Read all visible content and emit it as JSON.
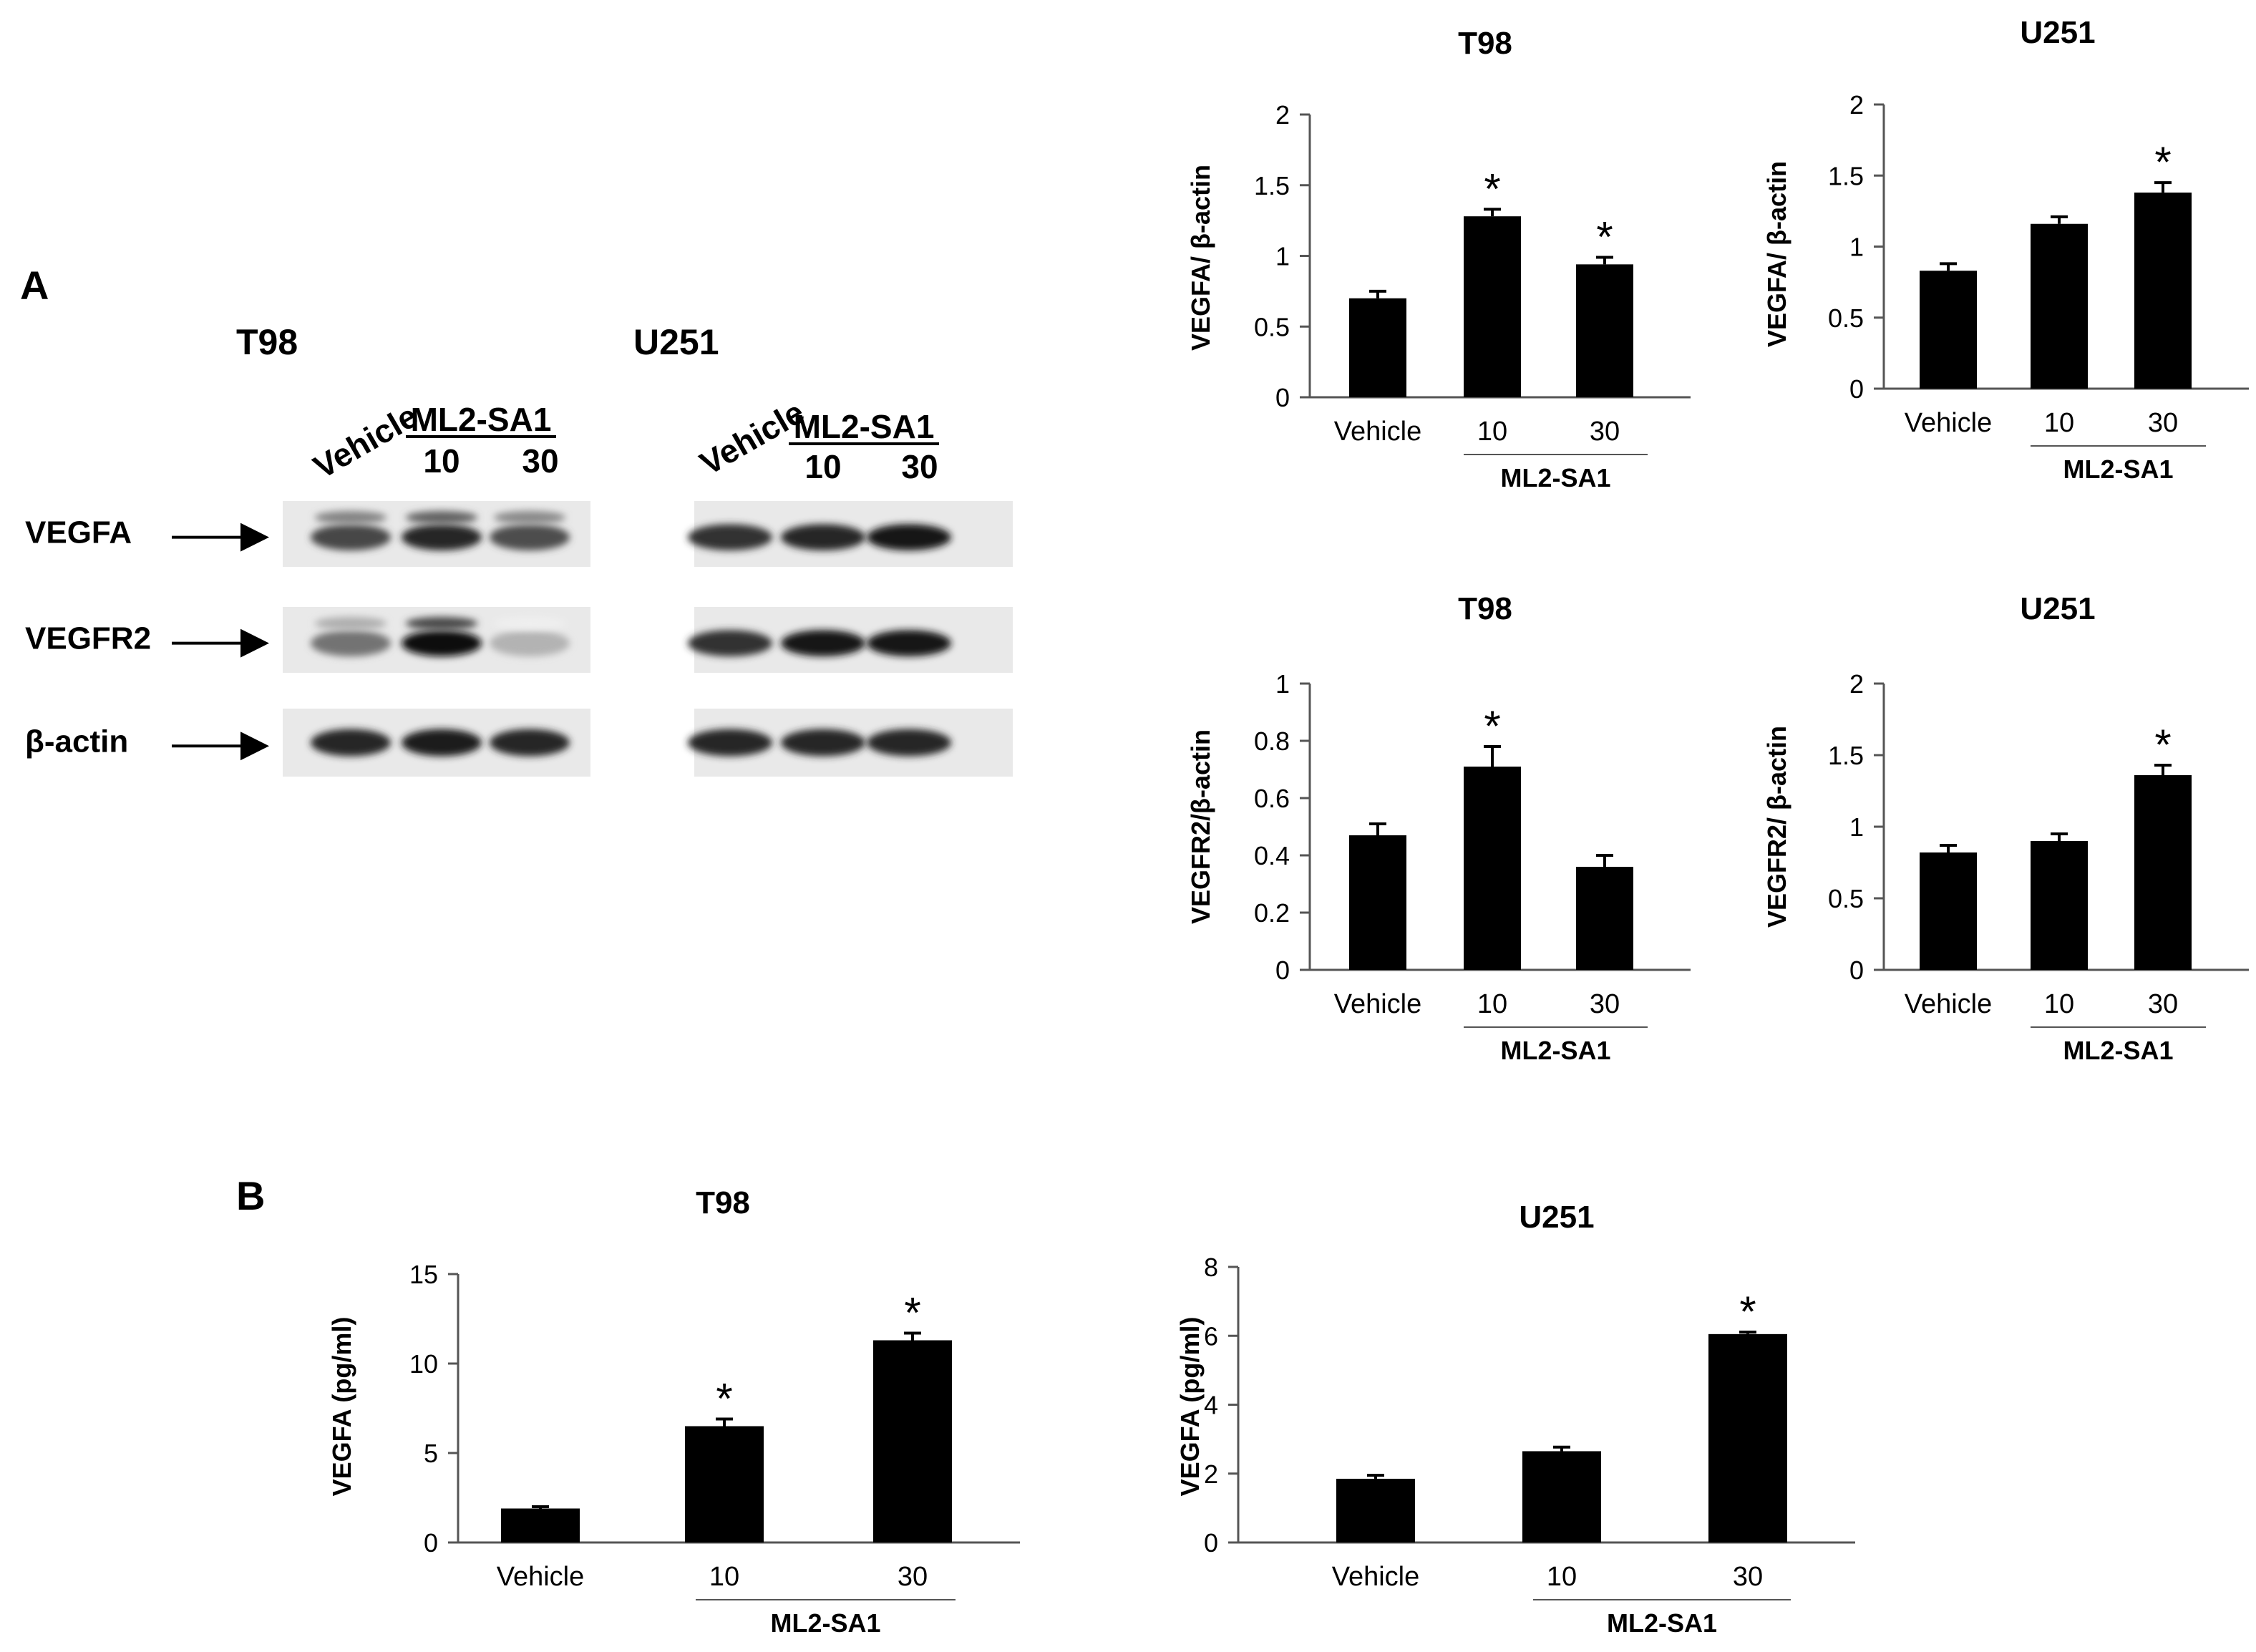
{
  "figure": {
    "panel_a_label": "A",
    "panel_b_label": "B"
  },
  "blots": [
    {
      "title": "T98",
      "lanes": [
        "Vehicle",
        "10",
        "30"
      ],
      "group_label": "ML2-SA1",
      "rows": [
        "VEGFA",
        "VEGFR2",
        "β-actin"
      ],
      "show_arrows": true,
      "band_intensity": [
        [
          0.72,
          0.85,
          0.7
        ],
        [
          0.55,
          0.95,
          0.3
        ],
        [
          0.85,
          0.88,
          0.85
        ]
      ]
    },
    {
      "title": "U251",
      "lanes": [
        "Vehicle",
        "10",
        "30"
      ],
      "group_label": "ML2-SA1",
      "rows": [
        "VEGFA",
        "VEGFR2",
        "β-actin"
      ],
      "show_arrows": false,
      "band_intensity": [
        [
          0.8,
          0.85,
          0.92
        ],
        [
          0.8,
          0.92,
          0.92
        ],
        [
          0.85,
          0.85,
          0.85
        ]
      ]
    }
  ],
  "chart_data": [
    {
      "type": "bar",
      "title": "T98",
      "categories": [
        "Vehicle",
        "10",
        "30"
      ],
      "group_label": "ML2-SA1",
      "ylabel": "VEGFA/ β-actin",
      "ylim": [
        0,
        2
      ],
      "yticks": [
        "0",
        "0.5",
        "1",
        "1.5",
        "2"
      ],
      "values": [
        0.7,
        1.28,
        0.94
      ],
      "errors": [
        0.05,
        0.05,
        0.05
      ],
      "significance": [
        "",
        "*",
        "*"
      ],
      "bar_color": "#000000"
    },
    {
      "type": "bar",
      "title": "U251",
      "categories": [
        "Vehicle",
        "10",
        "30"
      ],
      "group_label": "ML2-SA1",
      "ylabel": "VEGFA/ β-actin",
      "ylim": [
        0,
        2
      ],
      "yticks": [
        "0",
        "0.5",
        "1",
        "1.5",
        "2"
      ],
      "values": [
        0.83,
        1.16,
        1.38
      ],
      "errors": [
        0.05,
        0.05,
        0.07
      ],
      "significance": [
        "",
        "",
        "*"
      ],
      "bar_color": "#000000"
    },
    {
      "type": "bar",
      "title": "T98",
      "categories": [
        "Vehicle",
        "10",
        "30"
      ],
      "group_label": "ML2-SA1",
      "ylabel": "VEGFR2/β-actin",
      "ylim": [
        0,
        1
      ],
      "yticks": [
        "0",
        "0.2",
        "0.4",
        "0.6",
        "0.8",
        "1"
      ],
      "values": [
        0.47,
        0.71,
        0.36
      ],
      "errors": [
        0.04,
        0.07,
        0.04
      ],
      "significance": [
        "",
        "*",
        ""
      ],
      "bar_color": "#000000"
    },
    {
      "type": "bar",
      "title": "U251",
      "categories": [
        "Vehicle",
        "10",
        "30"
      ],
      "group_label": "ML2-SA1",
      "ylabel": "VEGFR2/ β-actin",
      "ylim": [
        0,
        2
      ],
      "yticks": [
        "0",
        "0.5",
        "1",
        "1.5",
        "2"
      ],
      "values": [
        0.82,
        0.9,
        1.36
      ],
      "errors": [
        0.05,
        0.05,
        0.07
      ],
      "significance": [
        "",
        "",
        "*"
      ],
      "bar_color": "#000000"
    },
    {
      "type": "bar",
      "title": "T98",
      "categories": [
        "Vehicle",
        "10",
        "30"
      ],
      "group_label": "ML2-SA1",
      "ylabel": "VEGFA (pg/ml)",
      "ylim": [
        0,
        15
      ],
      "yticks": [
        "0",
        "5",
        "10",
        "15"
      ],
      "values": [
        1.9,
        6.5,
        11.3
      ],
      "errors": [
        0.1,
        0.4,
        0.4
      ],
      "significance": [
        "",
        "*",
        "*"
      ],
      "bar_color": "#000000"
    },
    {
      "type": "bar",
      "title": "U251",
      "categories": [
        "Vehicle",
        "10",
        "30"
      ],
      "group_label": "ML2-SA1",
      "ylabel": "VEGFA (pg/ml)",
      "ylim": [
        0,
        8
      ],
      "yticks": [
        "0",
        "2",
        "4",
        "6",
        "8"
      ],
      "values": [
        1.85,
        2.65,
        6.05
      ],
      "errors": [
        0.1,
        0.12,
        0.06
      ],
      "significance": [
        "",
        "",
        "*"
      ],
      "bar_color": "#000000"
    }
  ]
}
